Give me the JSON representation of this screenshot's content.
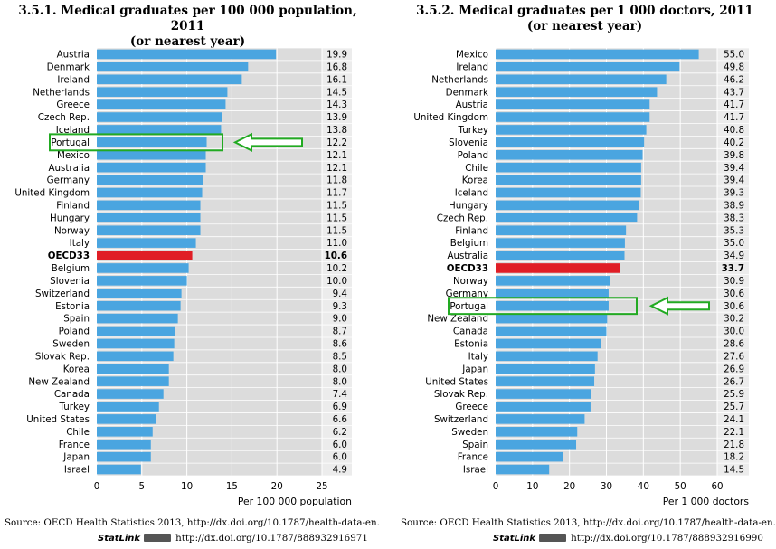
{
  "chart_data": [
    {
      "type": "bar",
      "orientation": "horizontal",
      "title": "3.5.1.  Medical graduates per 100 000 population, 2011",
      "subtitle": "(or nearest year)",
      "xlabel": "Per 100 000 population",
      "xlim": [
        0,
        25
      ],
      "xticks": [
        "0",
        "5",
        "10",
        "15",
        "20",
        "25"
      ],
      "highlight": "OECD33",
      "marked": "Portugal",
      "categories": [
        "Austria",
        "Denmark",
        "Ireland",
        "Netherlands",
        "Greece",
        "Czech Rep.",
        "Iceland",
        "Portugal",
        "Mexico",
        "Australia",
        "Germany",
        "United Kingdom",
        "Finland",
        "Hungary",
        "Norway",
        "Italy",
        "OECD33",
        "Belgium",
        "Slovenia",
        "Switzerland",
        "Estonia",
        "Spain",
        "Poland",
        "Sweden",
        "Slovak Rep.",
        "Korea",
        "New Zealand",
        "Canada",
        "Turkey",
        "United States",
        "Chile",
        "France",
        "Japan",
        "Israel"
      ],
      "values": [
        19.9,
        16.8,
        16.1,
        14.5,
        14.3,
        13.9,
        13.8,
        12.2,
        12.1,
        12.1,
        11.8,
        11.7,
        11.5,
        11.5,
        11.5,
        11.0,
        10.6,
        10.2,
        10.0,
        9.4,
        9.3,
        9.0,
        8.7,
        8.6,
        8.5,
        8.0,
        8.0,
        7.4,
        6.9,
        6.6,
        6.2,
        6.0,
        6.0,
        4.9
      ],
      "value_labels": [
        "19.9",
        "16.8",
        "16.1",
        "14.5",
        "14.3",
        "13.9",
        "13.8",
        "12.2",
        "12.1",
        "12.1",
        "11.8",
        "11.7",
        "11.5",
        "11.5",
        "11.5",
        "11.0",
        "10.6",
        "10.2",
        "10.0",
        "9.4",
        "9.3",
        "9.0",
        "8.7",
        "8.6",
        "8.5",
        "8.0",
        "8.0",
        "7.4",
        "6.9",
        "6.6",
        "6.2",
        "6.0",
        "6.0",
        "4.9"
      ],
      "source": "Source:  OECD Health Statistics 2013, http://dx.doi.org/10.1787/health-data-en.",
      "statlink_label": "StatLink",
      "statlink_url": "http://dx.doi.org/10.1787/888932916971"
    },
    {
      "type": "bar",
      "orientation": "horizontal",
      "title": "3.5.2.  Medical graduates per 1 000 doctors, 2011",
      "subtitle": "(or nearest year)",
      "xlabel": "Per 1 000 doctors",
      "xlim": [
        0,
        60
      ],
      "xticks": [
        "0",
        "10",
        "20",
        "30",
        "40",
        "50",
        "60"
      ],
      "highlight": "OECD33",
      "marked": "Portugal",
      "categories": [
        "Mexico",
        "Ireland",
        "Netherlands",
        "Denmark",
        "Austria",
        "United Kingdom",
        "Turkey",
        "Slovenia",
        "Poland",
        "Chile",
        "Korea",
        "Iceland",
        "Hungary",
        "Czech Rep.",
        "Finland",
        "Belgium",
        "Australia",
        "OECD33",
        "Norway",
        "Germany",
        "Portugal",
        "New Zealand",
        "Canada",
        "Estonia",
        "Italy",
        "Japan",
        "United States",
        "Slovak Rep.",
        "Greece",
        "Switzerland",
        "Sweden",
        "Spain",
        "France",
        "Israel"
      ],
      "values": [
        55.0,
        49.8,
        46.2,
        43.7,
        41.7,
        41.7,
        40.8,
        40.2,
        39.8,
        39.4,
        39.4,
        39.3,
        38.9,
        38.3,
        35.3,
        35.0,
        34.9,
        33.7,
        30.9,
        30.6,
        30.6,
        30.2,
        30.0,
        28.6,
        27.6,
        26.9,
        26.7,
        25.9,
        25.7,
        24.1,
        22.1,
        21.8,
        18.2,
        14.5
      ],
      "value_labels": [
        "55.0",
        "49.8",
        "46.2",
        "43.7",
        "41.7",
        "41.7",
        "40.8",
        "40.2",
        "39.8",
        "39.4",
        "39.4",
        "39.3",
        "38.9",
        "38.3",
        "35.3",
        "35.0",
        "34.9",
        "33.7",
        "30.9",
        "30.6",
        "30.6",
        "30.2",
        "30.0",
        "28.6",
        "27.6",
        "26.9",
        "26.7",
        "25.9",
        "25.7",
        "24.1",
        "22.1",
        "21.8",
        "18.2",
        "14.5"
      ],
      "source": "Source:  OECD Health Statistics 2013, http://dx.doi.org/10.1787/health-data-en.",
      "statlink_label": "StatLink",
      "statlink_url": "http://dx.doi.org/10.1787/888932916990"
    }
  ],
  "colors": {
    "bar": "#4aa5e0",
    "highlight_bar": "#e01e26",
    "panel": "#dcdcdc",
    "panel_alt": "#ececec",
    "annotation": "#22aa22"
  }
}
